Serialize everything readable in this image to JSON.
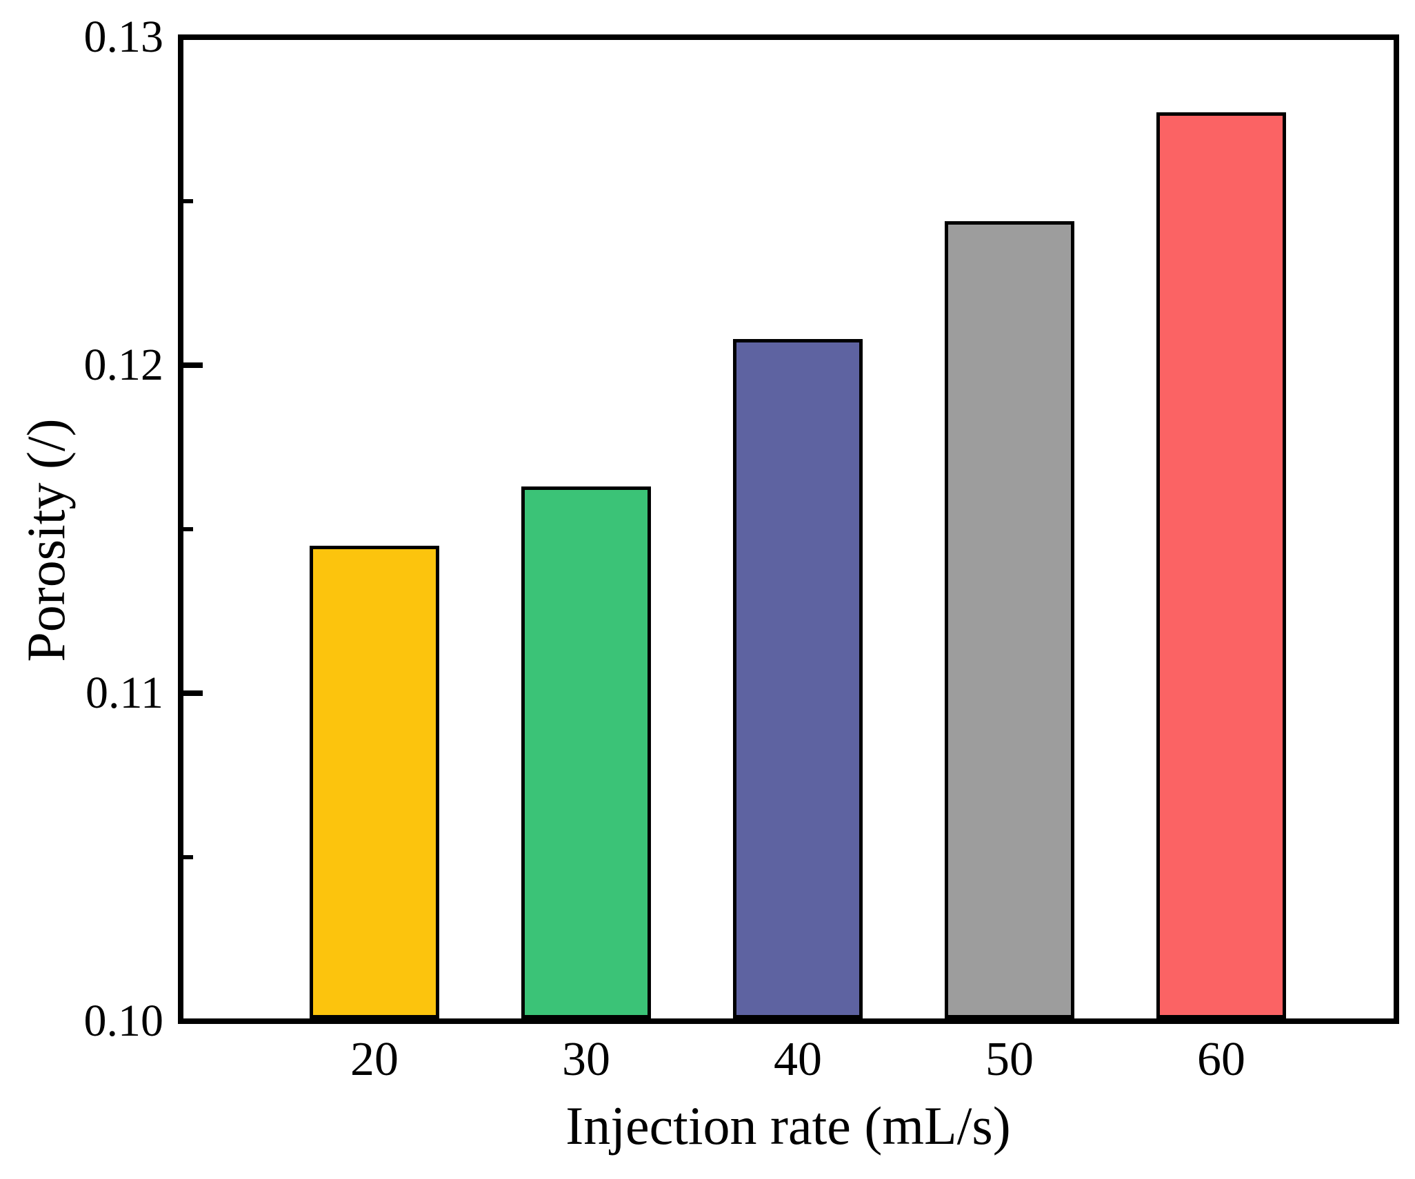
{
  "figure": {
    "background": "#ffffff",
    "axis_color": "#000000",
    "text_color": "#000000"
  },
  "chart_data": {
    "type": "bar",
    "title": "",
    "xlabel": "Injection rate (mL/s)",
    "ylabel": "Porosity (/)",
    "categories": [
      "20",
      "30",
      "40",
      "50",
      "60"
    ],
    "values": [
      0.1145,
      0.1163,
      0.1208,
      0.1244,
      0.1277
    ],
    "bar_colors": [
      "#FCC40D",
      "#3BC377",
      "#5E63A1",
      "#9D9D9D",
      "#FB6364"
    ],
    "bar_edge_color": "#000000",
    "ylim": [
      0.1,
      0.13
    ],
    "y_major_ticks": [
      0.1,
      0.11,
      0.12,
      0.13
    ],
    "y_major_tick_labels": [
      "0.10",
      "0.11",
      "0.12",
      "0.13"
    ],
    "y_minor_ticks": [
      0.105,
      0.115,
      0.125
    ],
    "tick_direction": "in",
    "grid": false,
    "legend_position": "none",
    "frame": "full-box"
  }
}
